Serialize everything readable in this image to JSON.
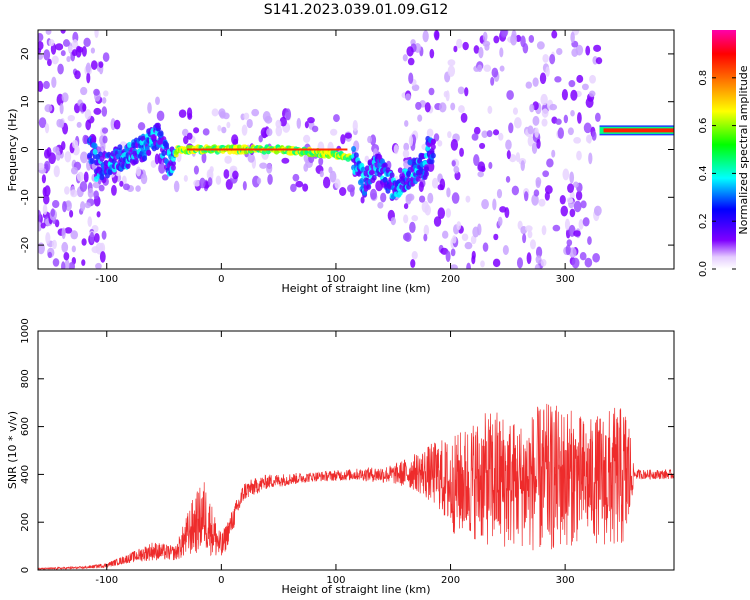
{
  "title": "S141.2023.039.01.09.G12",
  "colors": {
    "snr_line": "#ee2b2b",
    "colorbar": [
      "#ffffff",
      "#7f00ff",
      "#0000ff",
      "#00ffff",
      "#00ff00",
      "#ffff00",
      "#ff7f00",
      "#ff0000",
      "#ff00aa"
    ]
  },
  "chart_data": [
    {
      "type": "heatmap",
      "name": "spectrogram",
      "xlabel": "Height of straight line (km)",
      "ylabel": "Frequency (Hz)",
      "xlim": [
        -160,
        395
      ],
      "ylim": [
        -25,
        25
      ],
      "xticks": [
        -100,
        0,
        100,
        200,
        300
      ],
      "yticks": [
        -20,
        -10,
        0,
        10,
        20
      ],
      "grid": false,
      "colorbar": {
        "label": "Normalized spectral amplitude",
        "range": [
          0,
          1
        ],
        "ticks": [
          "0.0",
          "0.2",
          "0.4",
          "0.6",
          "0.8"
        ],
        "colormap": "rainbow"
      },
      "ridge": {
        "description": "dominant frequency track",
        "points": [
          [
            -110,
            -4
          ],
          [
            -90,
            -2
          ],
          [
            -70,
            0
          ],
          [
            -55,
            3
          ],
          [
            -45,
            -3
          ],
          [
            -38,
            0
          ],
          [
            -20,
            0
          ],
          [
            0,
            0
          ],
          [
            50,
            0
          ],
          [
            100,
            -1
          ],
          [
            115,
            -2
          ],
          [
            125,
            -7
          ],
          [
            135,
            -3
          ],
          [
            150,
            -8
          ],
          [
            165,
            -5
          ],
          [
            180,
            -3
          ]
        ],
        "tone": {
          "x_start": 330,
          "x_end": 395,
          "y": 4
        }
      }
    },
    {
      "type": "line",
      "name": "snr",
      "xlabel": "Height of straight line (km)",
      "ylabel": "SNR (10 * v/v)",
      "xlim": [
        -160,
        395
      ],
      "ylim": [
        0,
        1000
      ],
      "xticks": [
        -100,
        0,
        100,
        200,
        300
      ],
      "yticks": [
        0,
        200,
        400,
        600,
        800,
        1000
      ],
      "grid": false,
      "envelope": {
        "x": [
          -160,
          -120,
          -100,
          -80,
          -60,
          -40,
          -25,
          -15,
          0,
          20,
          40,
          80,
          120,
          150,
          170,
          190,
          200,
          220,
          240,
          260,
          280,
          300,
          320,
          340,
          355,
          360,
          395
        ],
        "center": [
          5,
          10,
          20,
          50,
          80,
          70,
          180,
          230,
          90,
          330,
          370,
          390,
          400,
          400,
          410,
          400,
          350,
          380,
          380,
          360,
          380,
          390,
          380,
          380,
          390,
          400,
          400
        ],
        "spread": [
          3,
          5,
          10,
          20,
          40,
          30,
          120,
          150,
          60,
          40,
          30,
          20,
          25,
          40,
          80,
          150,
          200,
          250,
          300,
          260,
          320,
          300,
          250,
          300,
          300,
          20,
          20
        ]
      },
      "max_value": 1000
    }
  ]
}
